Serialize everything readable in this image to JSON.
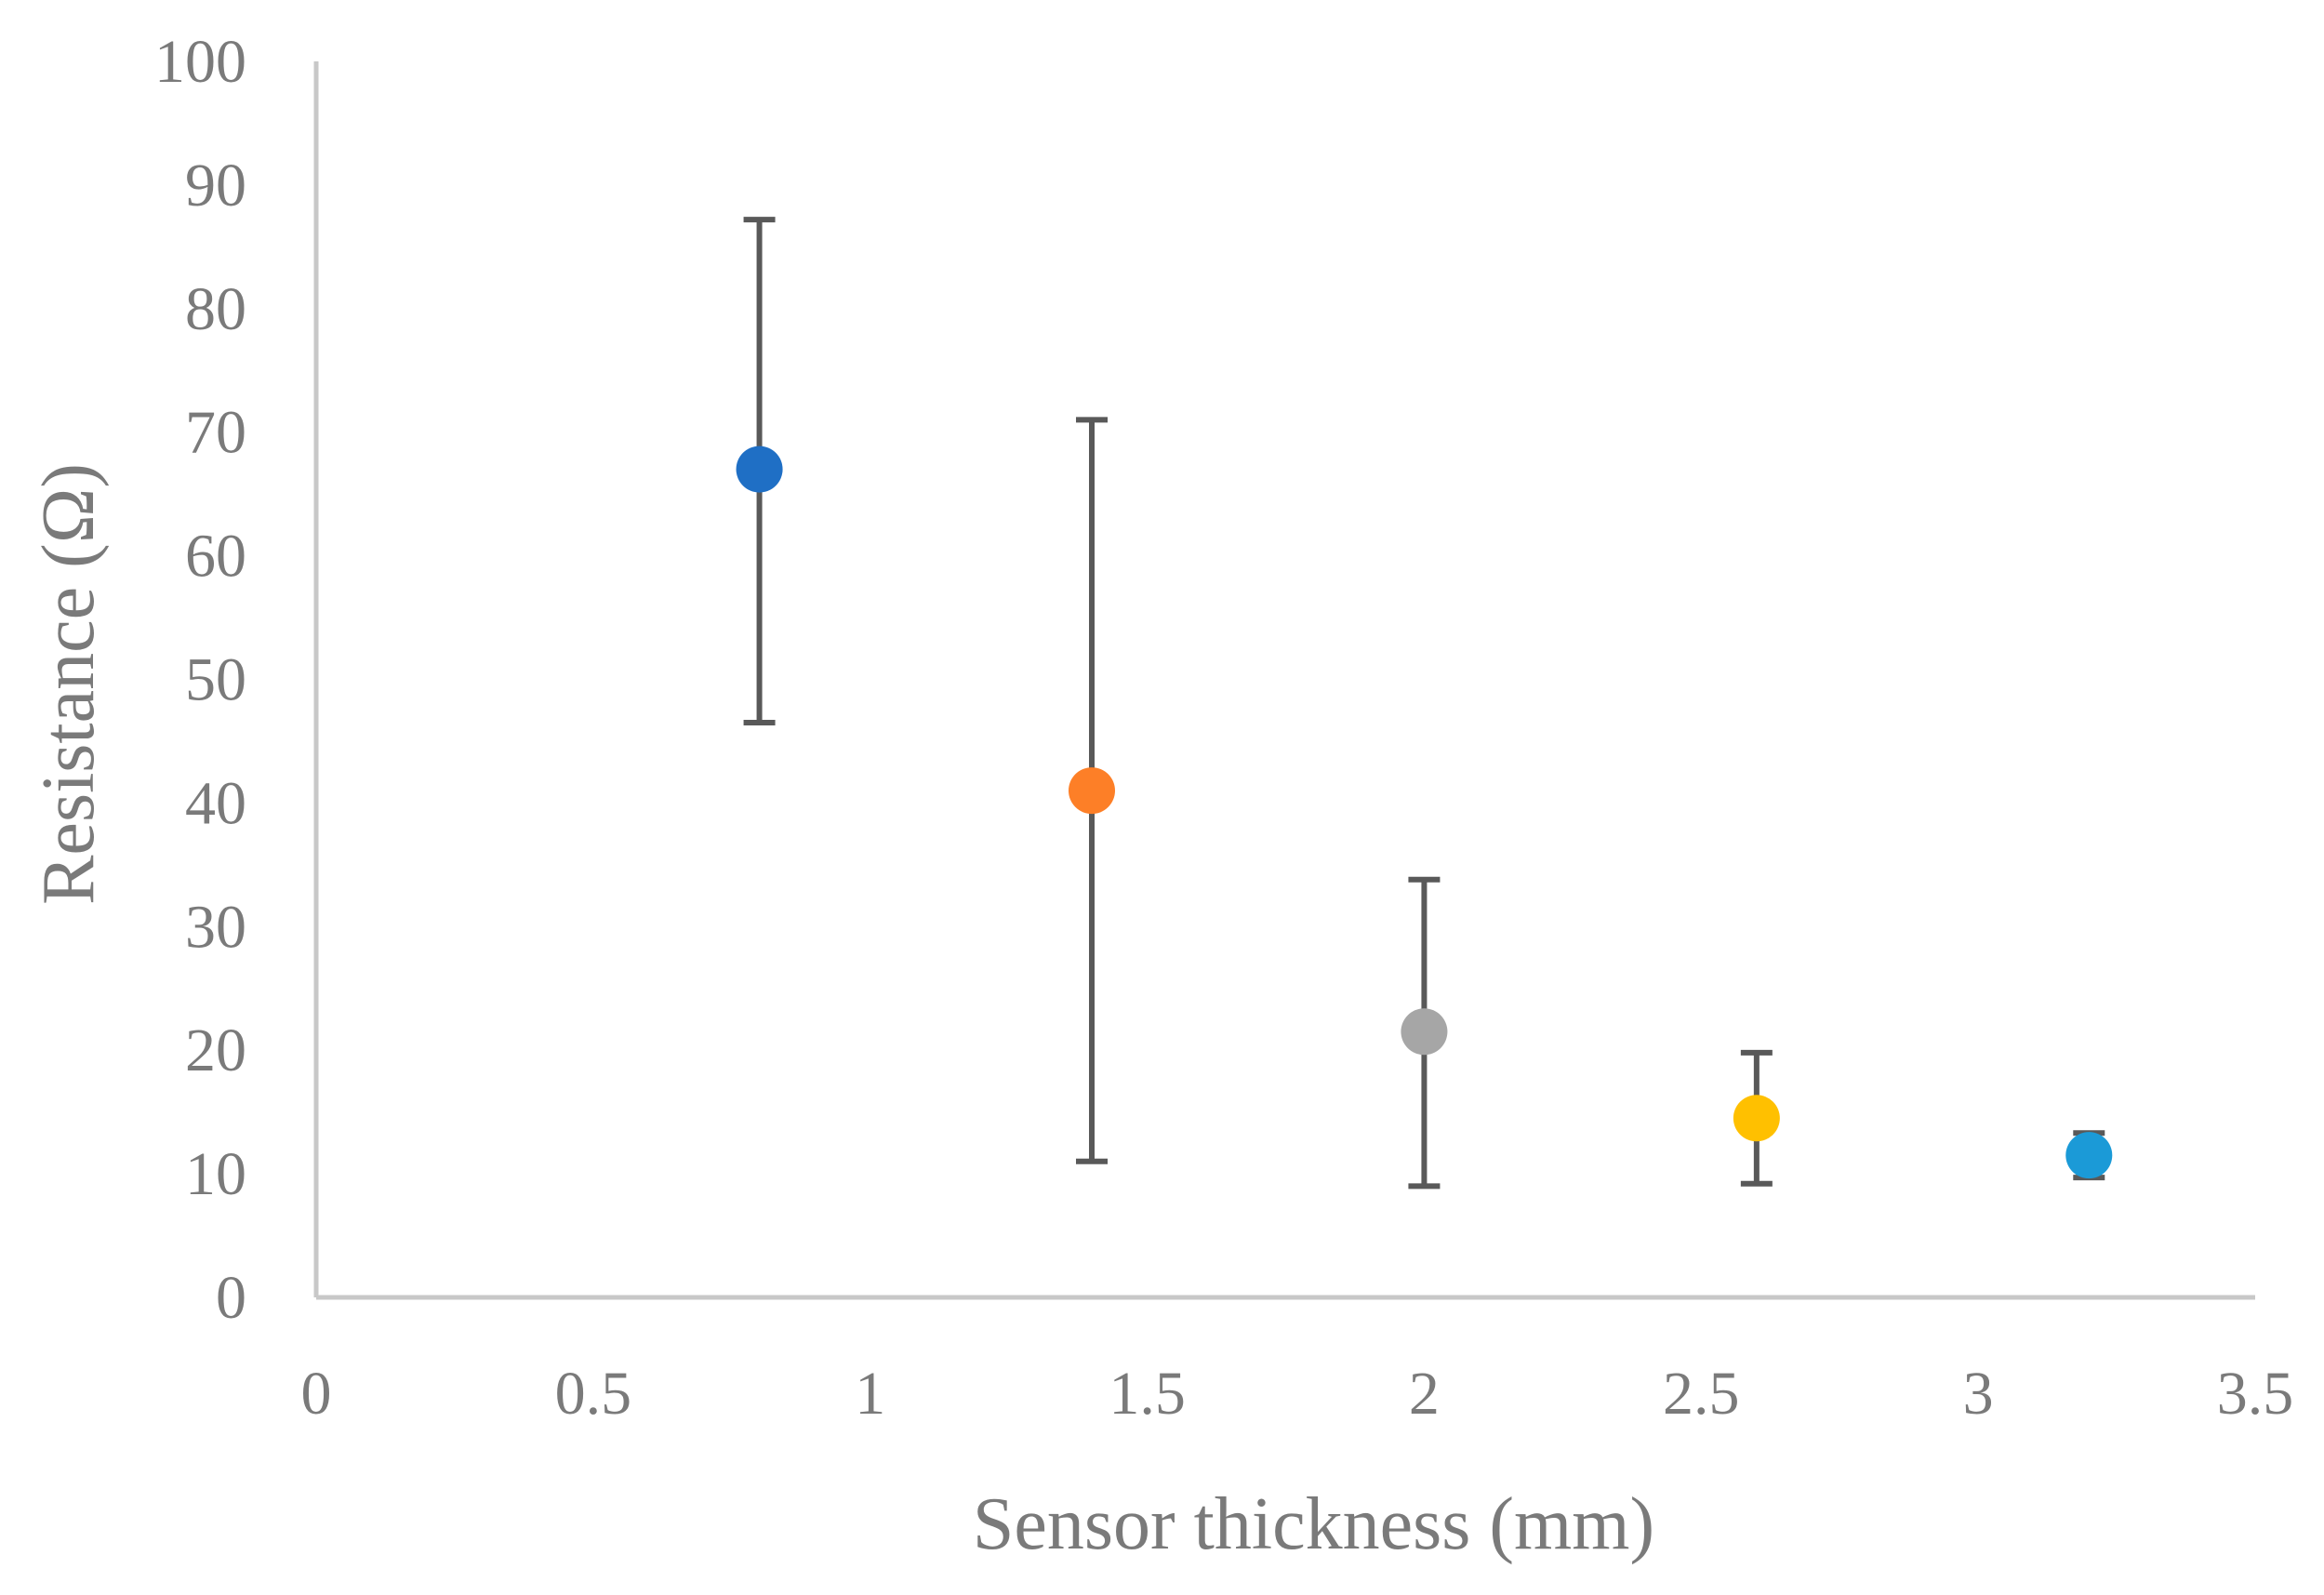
{
  "chart_data": {
    "type": "scatter",
    "title": "",
    "xlabel": "Sensor thickness (mm)",
    "ylabel": "Resistance (Ω)",
    "xlim": [
      0,
      3.5
    ],
    "ylim": [
      0,
      100
    ],
    "x_ticks": [
      "0",
      "0.5",
      "1",
      "1.5",
      "2",
      "2.5",
      "3",
      "3.5"
    ],
    "y_ticks": [
      "0",
      "10",
      "20",
      "30",
      "40",
      "50",
      "60",
      "70",
      "80",
      "90",
      "100"
    ],
    "grid": false,
    "legend": "none",
    "points": [
      {
        "x": 0.8,
        "y": 67.0,
        "err_low": 46.5,
        "err_high": 87.2,
        "color": "#1f6fc5"
      },
      {
        "x": 1.4,
        "y": 41.0,
        "err_low": 11.0,
        "err_high": 71.0,
        "color": "#fd7f27"
      },
      {
        "x": 2.0,
        "y": 21.5,
        "err_low": 9.0,
        "err_high": 33.8,
        "color": "#a6a6a6"
      },
      {
        "x": 2.6,
        "y": 14.5,
        "err_low": 9.2,
        "err_high": 19.8,
        "color": "#ffc000"
      },
      {
        "x": 3.2,
        "y": 11.5,
        "err_low": 9.7,
        "err_high": 13.3,
        "color": "#1b9ad7"
      }
    ]
  }
}
